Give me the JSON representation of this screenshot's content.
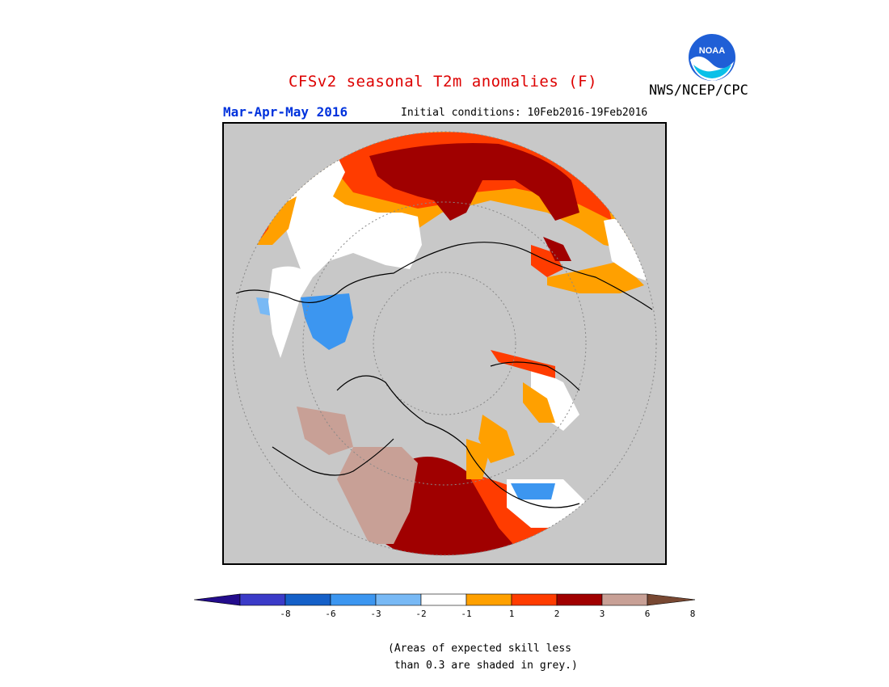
{
  "header": {
    "title": "CFSv2 seasonal T2m anomalies (F)",
    "title_color": "#dd0000",
    "agency": "NWS/NCEP/CPC",
    "period": "Mar-Apr-May 2016",
    "period_color": "#0033dd",
    "initial_conditions": "Initial conditions: 10Feb2016-19Feb2016"
  },
  "logo": {
    "icon": "noaa-logo",
    "text": "NOAA"
  },
  "map": {
    "projection": "north-polar-stereographic",
    "no_skill_color": "#c8c8c8"
  },
  "legend": {
    "ticks": [
      "-8",
      "-6",
      "-3",
      "-2",
      "-1",
      "1",
      "2",
      "3",
      "6",
      "8"
    ],
    "colors": [
      "#230c8c",
      "#3b3bc8",
      "#1560c8",
      "#3c96f0",
      "#78b9f5",
      "#ffffff",
      "#ffa000",
      "#ff3c00",
      "#a00000",
      "#c8a096",
      "#784832"
    ]
  },
  "note": {
    "line1": "(Areas of expected skill less",
    "line2": " than 0.3 are shaded in grey.)"
  }
}
